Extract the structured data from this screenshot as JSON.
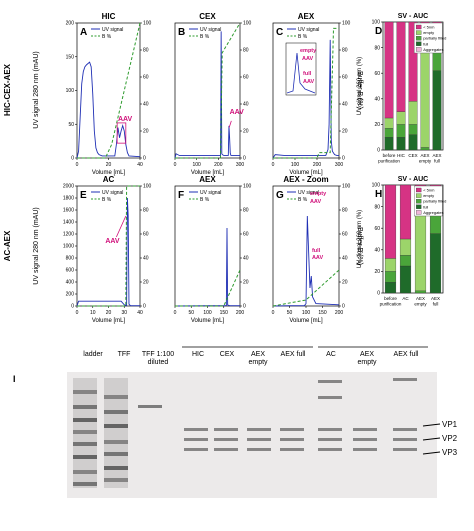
{
  "rows": [
    {
      "label": "HIC-CEX-AEX",
      "ylabel": "UV signal 280 nm (mAU)",
      "ylabel2": "Buffer B (%)"
    },
    {
      "label": "AC-AEX",
      "ylabel": "UV signal 280 nm (mAU)",
      "ylabel2": "Buffer B (%)"
    }
  ],
  "xlabel": "Volume [mL]",
  "colors": {
    "uv": "#1f2fb4",
    "buffer": "#2e9b2e",
    "annot": "#d0107a",
    "lt5": "#d63384",
    "empty": "#9cd46a",
    "partial": "#4aa53a",
    "full": "#1f6b2a",
    "aggr": "#f2b6d9"
  },
  "chart_data": [
    {
      "id": "A",
      "panel": "A",
      "type": "line",
      "title": "HIC",
      "legend": [
        "UV signal",
        "B %"
      ],
      "annotation": "AAV",
      "xlim": [
        0,
        40
      ],
      "ylim": [
        0,
        200
      ],
      "y2lim": [
        0,
        100
      ],
      "xticks": [
        "0",
        "20",
        "40"
      ],
      "yticks": [
        "0",
        "50",
        "100",
        "150",
        "200"
      ],
      "y2ticks": [
        "0",
        "20",
        "40",
        "60",
        "80",
        "100"
      ],
      "series": [
        {
          "name": "UV signal",
          "x": [
            0,
            1,
            2,
            3,
            4,
            5,
            6,
            7,
            8,
            9,
            10,
            11,
            12,
            13,
            14,
            16,
            18,
            20,
            22,
            24,
            25,
            26,
            27,
            28,
            29,
            30,
            31,
            32,
            33,
            40
          ],
          "y": [
            0,
            10,
            60,
            110,
            128,
            135,
            138,
            140,
            142,
            135,
            95,
            40,
            15,
            8,
            5,
            3,
            3,
            3,
            3,
            3,
            20,
            45,
            30,
            40,
            48,
            40,
            20,
            8,
            3,
            2
          ]
        },
        {
          "name": "B %",
          "x": [
            0,
            18,
            22,
            40
          ],
          "y": [
            0,
            0,
            10,
            100
          ]
        }
      ]
    },
    {
      "id": "B",
      "panel": "B",
      "type": "line",
      "title": "CEX",
      "legend": [
        "UV signal",
        "B %"
      ],
      "annotation": "AAV",
      "xlim": [
        0,
        300
      ],
      "ylim": [
        0,
        160
      ],
      "y2lim": [
        0,
        100
      ],
      "xticks": [
        "0",
        "100",
        "200",
        "300"
      ],
      "yticks": [],
      "y2ticks": [
        "0",
        "20",
        "40",
        "60",
        "80",
        "100"
      ],
      "series": [
        {
          "name": "UV signal",
          "x": [
            0,
            5,
            20,
            180,
            210,
            213,
            216,
            219,
            225,
            240,
            246,
            249,
            252,
            255,
            258,
            270,
            300
          ],
          "y": [
            0,
            5,
            3,
            3,
            3,
            150,
            5,
            4,
            3,
            3,
            3,
            38,
            24,
            6,
            3,
            3,
            3
          ]
        },
        {
          "name": "B %",
          "x": [
            0,
            210,
            218,
            300
          ],
          "y": [
            0,
            0,
            78,
            100
          ]
        }
      ]
    },
    {
      "id": "C",
      "panel": "C",
      "type": "line",
      "title": "AEX",
      "legend": [
        "UV signal",
        "B %"
      ],
      "annotations": [
        "empty",
        "AAV",
        "full",
        "AAV"
      ],
      "xlim": [
        0,
        300
      ],
      "ylim": [
        0,
        160
      ],
      "y2lim": [
        0,
        100
      ],
      "xticks": [
        "0",
        "100",
        "200",
        "300"
      ],
      "yticks": [],
      "y2ticks": [
        "0",
        "20",
        "40",
        "60",
        "80",
        "100"
      ],
      "series": [
        {
          "name": "UV signal",
          "x": [
            0,
            10,
            50,
            100,
            150,
            200,
            240,
            250,
            255,
            260,
            265,
            270,
            280,
            290,
            300
          ],
          "y": [
            0,
            4,
            3,
            3,
            3,
            3,
            3,
            10,
            40,
            140,
            20,
            8,
            4,
            3,
            3
          ]
        },
        {
          "name": "B %",
          "x": [
            0,
            200,
            210,
            260,
            275,
            300
          ],
          "y": [
            0,
            0,
            4,
            4,
            96,
            96
          ]
        }
      ]
    },
    {
      "id": "D",
      "panel": "D",
      "type": "bar",
      "title": "SV - AUC",
      "ylabel": "UV signal 260 nm (%)",
      "categories": [
        "before purification",
        "HIC",
        "CEX",
        "AEX empty",
        "AEX full"
      ],
      "legend": [
        "< 5nm",
        "empty",
        "partially filled",
        "full",
        "Aggregates"
      ],
      "ylim": [
        0,
        100
      ],
      "yticks": [
        "0",
        "20",
        "40",
        "60",
        "80",
        "100"
      ],
      "series": [
        {
          "name": "full",
          "values": [
            10,
            10,
            12,
            0,
            62
          ]
        },
        {
          "name": "partially filled",
          "values": [
            7,
            10,
            8,
            2,
            22
          ]
        },
        {
          "name": "empty",
          "values": [
            8,
            10,
            18,
            90,
            2
          ]
        },
        {
          "name": "< 5nm",
          "values": [
            75,
            70,
            62,
            8,
            14
          ]
        },
        {
          "name": "Aggregates",
          "values": [
            0,
            0,
            0,
            0,
            0
          ]
        }
      ]
    },
    {
      "id": "E",
      "panel": "E",
      "type": "line",
      "title": "AC",
      "legend": [
        "UV signal",
        "B %"
      ],
      "annotation": "AAV",
      "xlim": [
        0,
        40
      ],
      "ylim": [
        0,
        2000
      ],
      "y2lim": [
        0,
        100
      ],
      "xticks": [
        "0",
        "10",
        "20",
        "30",
        "40"
      ],
      "yticks": [
        "0",
        "200",
        "400",
        "600",
        "800",
        "1000",
        "1200",
        "1400",
        "1600",
        "1800",
        "2000"
      ],
      "y2ticks": [
        "0",
        "20",
        "40",
        "60",
        "80",
        "100"
      ],
      "series": [
        {
          "name": "UV signal",
          "x": [
            0,
            1,
            2,
            15,
            28,
            30,
            31.5,
            32,
            32.5,
            33,
            34,
            40
          ],
          "y": [
            0,
            80,
            80,
            80,
            80,
            20,
            5,
            1800,
            1500,
            30,
            5,
            5
          ]
        },
        {
          "name": "B %",
          "x": [
            0,
            31,
            31.5,
            40
          ],
          "y": [
            0,
            0,
            100,
            100
          ]
        }
      ]
    },
    {
      "id": "F",
      "panel": "F",
      "type": "line",
      "title": "AEX",
      "legend": [
        "UV signal",
        "B %"
      ],
      "xlim": [
        0,
        200
      ],
      "ylim": [
        0,
        2000
      ],
      "y2lim": [
        0,
        100
      ],
      "xticks": [
        "0",
        "50",
        "100",
        "150",
        "200"
      ],
      "yticks": [],
      "y2ticks": [
        "0",
        "20",
        "40",
        "60",
        "80",
        "100"
      ],
      "series": [
        {
          "name": "UV signal",
          "x": [
            0,
            100,
            150,
            155,
            158,
            160,
            162,
            165,
            170,
            200
          ],
          "y": [
            0,
            5,
            5,
            5,
            10,
            1300,
            20,
            10,
            5,
            5
          ]
        },
        {
          "name": "B %",
          "x": [
            0,
            150,
            200
          ],
          "y": [
            0,
            0,
            30
          ]
        }
      ]
    },
    {
      "id": "G",
      "panel": "G",
      "type": "line",
      "title": "AEX - Zoom",
      "legend": [
        "UV signal",
        "B %"
      ],
      "annotations": [
        "empty",
        "AAV",
        "full",
        "AAV"
      ],
      "xlim": [
        0,
        200
      ],
      "ylim": [
        0,
        2000
      ],
      "y2lim": [
        0,
        100
      ],
      "xticks": [
        "0",
        "50",
        "100",
        "150",
        "200"
      ],
      "yticks": [],
      "y2ticks": [
        "0",
        "20",
        "40",
        "60",
        "80",
        "100"
      ],
      "series": [
        {
          "name": "UV signal",
          "x": [
            0,
            50,
            95,
            100,
            104,
            108,
            112,
            116,
            120,
            130,
            200
          ],
          "y": [
            0,
            5,
            5,
            40,
            1500,
            900,
            300,
            500,
            150,
            40,
            20
          ]
        },
        {
          "name": "B %",
          "x": [
            0,
            100,
            200
          ],
          "y": [
            0,
            5,
            30
          ]
        }
      ]
    },
    {
      "id": "H",
      "panel": "H",
      "type": "bar",
      "title": "SV - AUC",
      "ylabel": "UV signal 260 nm (%)",
      "categories": [
        "before purification",
        "AC",
        "AEX empty",
        "AEX full"
      ],
      "legend": [
        "< 5nm",
        "empty",
        "partially filled",
        "full",
        "Aggregates"
      ],
      "ylim": [
        0,
        100
      ],
      "yticks": [
        "0",
        "20",
        "40",
        "60",
        "80",
        "100"
      ],
      "series": [
        {
          "name": "full",
          "values": [
            10,
            25,
            0,
            55
          ]
        },
        {
          "name": "partially filled",
          "values": [
            10,
            10,
            2,
            20
          ]
        },
        {
          "name": "empty",
          "values": [
            12,
            15,
            95,
            10
          ]
        },
        {
          "name": "< 5nm",
          "values": [
            68,
            50,
            3,
            15
          ]
        },
        {
          "name": "Aggregates",
          "values": [
            0,
            0,
            0,
            0
          ]
        }
      ]
    }
  ],
  "gel": {
    "panel": "I",
    "lanes": [
      "ladder",
      "TFF",
      "TFF 1:100 diluted",
      "HIC",
      "CEX",
      "AEX empty",
      "AEX full",
      "AC",
      "AEX empty",
      "AEX full"
    ],
    "bands": [
      "VP1",
      "VP2",
      "VP3"
    ]
  }
}
